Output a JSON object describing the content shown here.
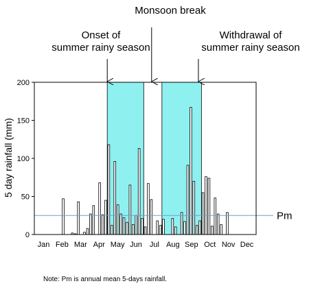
{
  "chart_data": {
    "type": "bar",
    "ylabel": "5 day rainfall (mm)",
    "ylim": [
      0,
      200
    ],
    "yticks": [
      0,
      50,
      100,
      150,
      200
    ],
    "months": [
      "Jan",
      "Feb",
      "Mar",
      "Apr",
      "May",
      "Jun",
      "Jul",
      "Aug",
      "Sep",
      "Oct",
      "Nov",
      "Dec"
    ],
    "x_unit": "5-day period (pentad) of year",
    "xlim": [
      0,
      73
    ],
    "pentads": [
      1,
      2,
      3,
      4,
      5,
      6,
      7,
      8,
      9,
      10,
      11,
      12,
      13,
      14,
      15,
      16,
      17,
      18,
      19,
      20,
      21,
      22,
      23,
      24,
      25,
      26,
      27,
      28,
      29,
      30,
      31,
      32,
      33,
      34,
      35,
      36,
      37,
      38,
      39,
      40,
      41,
      42,
      43,
      44,
      45,
      46,
      47,
      48,
      49,
      50,
      51,
      52,
      53,
      54,
      55,
      56,
      57,
      58,
      59,
      60,
      61,
      62,
      63,
      64,
      65,
      66,
      67,
      68,
      69,
      70,
      71,
      72,
      73
    ],
    "values": [
      0,
      0,
      0,
      0,
      0,
      0,
      0,
      0,
      0,
      47,
      0,
      0,
      2,
      1,
      43,
      0,
      3,
      8,
      27,
      38,
      0,
      68,
      26,
      45,
      118,
      12,
      96,
      39,
      27,
      22,
      16,
      65,
      13,
      25,
      113,
      21,
      10,
      67,
      46,
      0,
      18,
      12,
      20,
      0,
      0,
      21,
      10,
      0,
      29,
      17,
      91,
      167,
      70,
      12,
      18,
      55,
      76,
      74,
      11,
      48,
      27,
      13,
      0,
      29,
      0,
      0,
      0,
      0,
      0,
      0,
      0,
      0,
      0
    ],
    "reference_line": {
      "label": "Pm",
      "value": 25,
      "color": "#6ca0c8"
    },
    "shaded_periods": [
      {
        "start": 25,
        "end": 36,
        "color": "#8ff0f0"
      },
      {
        "start": 43,
        "end": 55,
        "color": "#8ff0f0"
      }
    ],
    "annotations": [
      {
        "id": "onset",
        "text_lines": [
          "Onset of",
          "summer rainy season"
        ],
        "arrow_at": 25
      },
      {
        "id": "break",
        "text_lines": [
          "Monsoon break"
        ],
        "arrow_at": 39.6
      },
      {
        "id": "withdrawal",
        "text_lines": [
          "Withdrawal of",
          "summer rainy season"
        ],
        "arrow_at": 55
      }
    ],
    "note": "Note: Pm is annual mean 5-days rainfall.",
    "grid": false,
    "bar_fill": "#ffffff",
    "bar_stroke": "#000000"
  }
}
